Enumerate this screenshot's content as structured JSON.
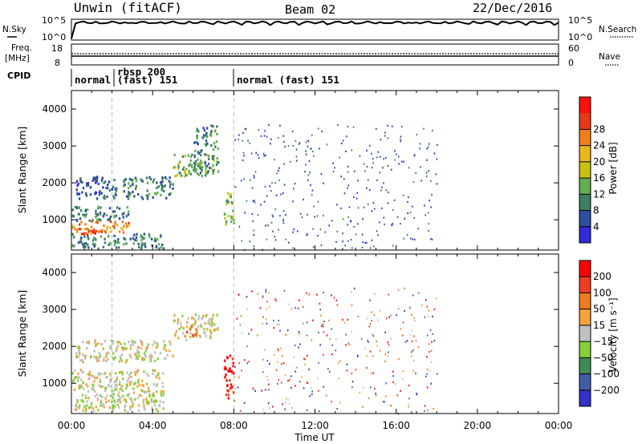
{
  "header": {
    "station": "Unwin (fitACF)",
    "beam": "Beam 02",
    "date": "22/Dec/2016"
  },
  "top_panels": {
    "nsky_label": "N.Sky",
    "nsearch_label": "N.Search",
    "freq_label_1": "Freq.",
    "freq_label_2": "[MHz]",
    "nave_label": "Nave",
    "cpid_label": "CPID",
    "noise_ticks_left": [
      "10^5",
      "10^0"
    ],
    "noise_ticks_right": [
      "10^5",
      "10^0"
    ],
    "freq_ticks": [
      "18",
      "8"
    ],
    "nave_ticks": [
      "60",
      "0"
    ]
  },
  "cpid_segments": [
    {
      "label": "normal",
      "start_h": 0.0
    },
    {
      "label": "rbsp 200",
      "sub": "(fast) 151",
      "start_h": 2.0
    },
    {
      "label": "normal (fast) 151",
      "start_h": 8.0
    }
  ],
  "colors": {
    "power": [
      "#2f2ad8",
      "#2d4fa0",
      "#3d7f63",
      "#62ae51",
      "#c7c20f",
      "#eab81d",
      "#f07f1a",
      "#e83a17",
      "#ff1010"
    ],
    "velocity": [
      "#3730c8",
      "#3f5fa4",
      "#3f8a56",
      "#88cf3a",
      "#c0c0c0",
      "#f4a43c",
      "#ef7b20",
      "#ef3c22",
      "#ff0000"
    ]
  },
  "chart_data": [
    {
      "type": "heatmap",
      "title": "Power",
      "xlabel": "Time UT",
      "ylabel": "Slant Range [km]",
      "xlim": [
        0,
        24
      ],
      "ylim": [
        180,
        4500
      ],
      "x_ticks": [
        "00:00",
        "04:00",
        "08:00",
        "12:00",
        "16:00",
        "20:00",
        "00:00"
      ],
      "y_ticks": [
        1000,
        2000,
        3000,
        4000
      ],
      "colorbar_label": "Power [dB]",
      "colorbar_ticks": [
        4,
        8,
        12,
        16,
        20,
        24,
        28
      ],
      "regions": [
        {
          "t": [
            0.0,
            2.8
          ],
          "r": [
            1000,
            1400
          ],
          "level": 2
        },
        {
          "t": [
            0.0,
            2.8
          ],
          "r": [
            650,
            1000
          ],
          "level": 6
        },
        {
          "t": [
            0.5,
            1.5
          ],
          "r": [
            600,
            780
          ],
          "level": 8
        },
        {
          "t": [
            0.0,
            4.5
          ],
          "r": [
            250,
            650
          ],
          "level": 2
        },
        {
          "t": [
            0.2,
            2.2
          ],
          "r": [
            1600,
            2200
          ],
          "level": 1
        },
        {
          "t": [
            2.5,
            5.0
          ],
          "r": [
            1600,
            2200
          ],
          "level": 2
        },
        {
          "t": [
            5.0,
            7.0
          ],
          "r": [
            2200,
            2800
          ],
          "level": 3
        },
        {
          "t": [
            6.0,
            7.2
          ],
          "r": [
            2300,
            3600
          ],
          "level": 2
        },
        {
          "t": [
            7.5,
            8.0
          ],
          "r": [
            900,
            1800
          ],
          "level": 3
        },
        {
          "t": [
            8.0,
            18.0
          ],
          "r": [
            200,
            3600
          ],
          "level": 1
        }
      ]
    },
    {
      "type": "heatmap",
      "title": "Velocity",
      "xlabel": "Time UT",
      "ylabel": "Slant Range [km]",
      "xlim": [
        0,
        24
      ],
      "ylim": [
        180,
        4500
      ],
      "x_ticks": [
        "00:00",
        "04:00",
        "08:00",
        "12:00",
        "16:00",
        "20:00",
        "00:00"
      ],
      "y_ticks": [
        1000,
        2000,
        3000,
        4000
      ],
      "colorbar_label": "Velocity [m s⁻¹]",
      "colorbar_ticks": [
        200,
        100,
        50,
        15,
        -15,
        -50,
        -100,
        -200
      ],
      "regions": [
        {
          "t": [
            0.0,
            4.5
          ],
          "r": [
            250,
            1400
          ],
          "level": 4
        },
        {
          "t": [
            0.2,
            5.0
          ],
          "r": [
            1600,
            2200
          ],
          "level": 4
        },
        {
          "t": [
            5.0,
            7.2
          ],
          "r": [
            2200,
            2900
          ],
          "level": 4
        },
        {
          "t": [
            5.5,
            6.2
          ],
          "r": [
            2300,
            2600
          ],
          "level": 6
        },
        {
          "t": [
            7.5,
            8.0
          ],
          "r": [
            600,
            1800
          ],
          "level": 8
        },
        {
          "t": [
            8.0,
            18.0
          ],
          "r": [
            200,
            3600
          ],
          "level": 7
        }
      ]
    }
  ]
}
